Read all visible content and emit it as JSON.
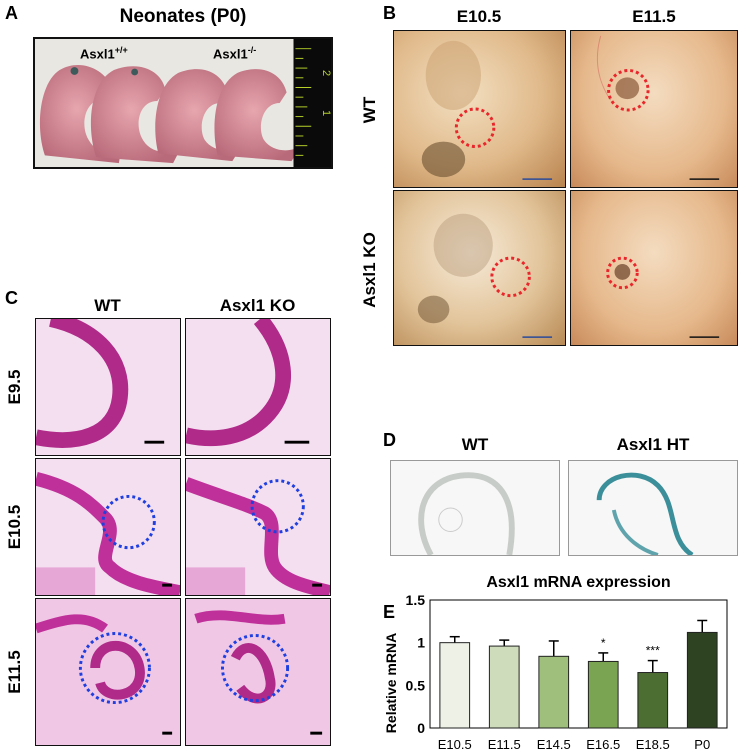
{
  "panels": {
    "A": {
      "label": "A",
      "title": "Neonates (P0)",
      "genotype_wt": "Asxl1",
      "genotype_wt_sup": "+/+",
      "genotype_ko": "Asxl1",
      "genotype_ko_sup": "-/-",
      "ruler_marks": [
        "2",
        "1"
      ]
    },
    "B": {
      "label": "B",
      "columns": [
        "E10.5",
        "E11.5"
      ],
      "rows": [
        "WT",
        "Asxl1 KO"
      ]
    },
    "C": {
      "label": "C",
      "columns": [
        "WT",
        "Asxl1 KO"
      ],
      "rows": [
        "E9.5",
        "E10.5",
        "E11.5"
      ]
    },
    "D": {
      "label": "D",
      "columns": [
        "WT",
        "Asxl1 HT"
      ]
    },
    "E": {
      "label": "E"
    }
  },
  "colors": {
    "circle_B": "#e8262b",
    "circle_C": "#1f3fe0",
    "xgal_stain": "#3a8f9a"
  },
  "chart_data": {
    "type": "bar",
    "title": "Asxl1 mRNA expression",
    "ylabel": "Relative mRNA",
    "xlabel": "",
    "categories": [
      "E10.5",
      "E11.5",
      "E14.5",
      "E16.5",
      "E18.5",
      "P0"
    ],
    "values": [
      1.0,
      0.96,
      0.84,
      0.78,
      0.65,
      1.12
    ],
    "error_upper": [
      0.07,
      0.07,
      0.18,
      0.1,
      0.14,
      0.14
    ],
    "significance": [
      "",
      "",
      "",
      "*",
      "***",
      ""
    ],
    "bar_colors": [
      "#eef2e6",
      "#cfdcbc",
      "#9fc07c",
      "#7aa451",
      "#4d6e33",
      "#2d4322"
    ],
    "ylim": [
      0,
      1.5
    ],
    "yticks": [
      "0",
      "0.5",
      "1",
      "1.5"
    ],
    "grid": false
  }
}
